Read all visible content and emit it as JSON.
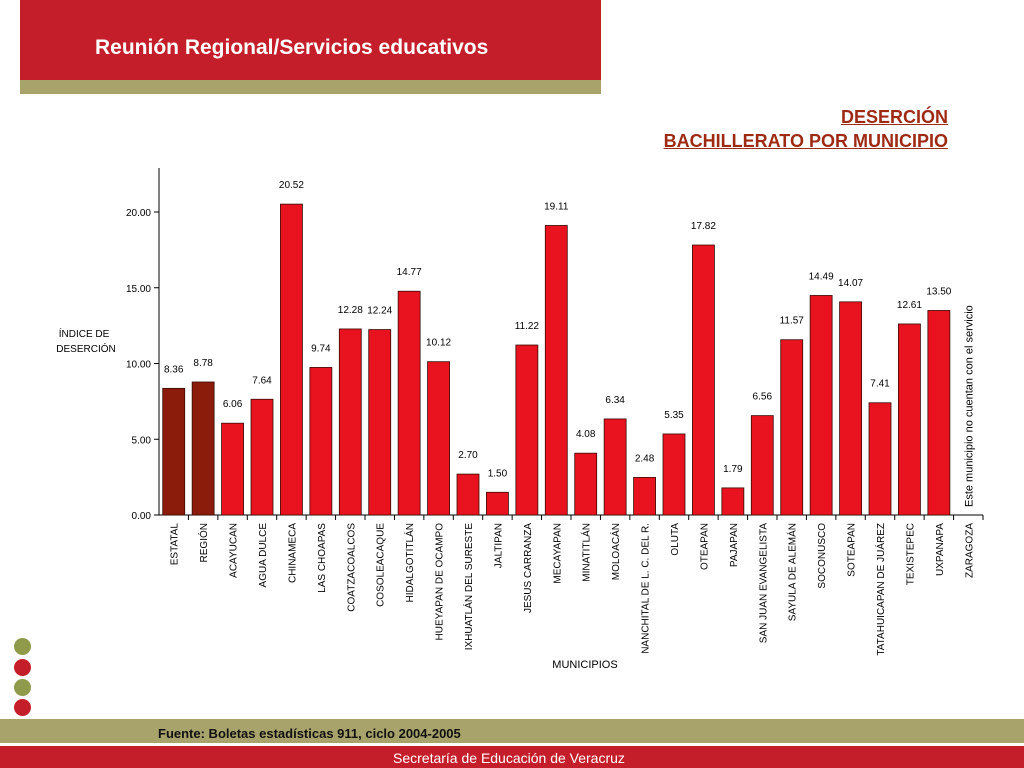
{
  "header": {
    "title": "Reunión Regional/Servicios educativos"
  },
  "chart_heading": {
    "line1": "DESERCIÓN",
    "line2": "BACHILLERATO POR MUNICIPIO"
  },
  "footer": {
    "source": "Fuente: Boletas estadísticas 911, ciclo 2004-2005",
    "secretaria": "Secretaría de Educación de Veracruz"
  },
  "colors": {
    "header_red": "#c41e2a",
    "olive": "#a8a36a",
    "bar_red": "#e8131f",
    "bar_dark": "#8b1c0c",
    "heading_text": "#9e2a14"
  },
  "decor": {
    "dots": [
      "#8f9a4a",
      "#c41e2a",
      "#8f9a4a",
      "#c41e2a"
    ]
  },
  "chart_data": {
    "type": "bar",
    "title": "DESERCIÓN BACHILLERATO POR MUNICIPIO",
    "ylabel": "ÍNDICE DE DESERCIÓN",
    "xlabel": "MUNICIPIOS",
    "ylim": [
      0,
      23
    ],
    "yticks": [
      "0.00",
      "5.00",
      "10.00",
      "15.00",
      "20.00"
    ],
    "grid": false,
    "categories": [
      "ESTATAL",
      "REGIÓN",
      "ACAYUCAN",
      "AGUA DULCE",
      "CHINAMECA",
      "LAS CHOAPAS",
      "COATZACOALCOS",
      "COSOLEACAQUE",
      "HIDALGOTITLÁN",
      "HUEYAPAN DE OCAMPO",
      "IXHUATLÁN DEL SURESTE",
      "JALTIPAN",
      "JESUS CARRANZA",
      "MECAYAPAN",
      "MINATITLÁN",
      "MOLOACÁN",
      "NANCHITAL DE L. C. DEL R.",
      "OLUTA",
      "OTEAPAN",
      "PAJAPAN",
      "SAN JUAN EVANGELISTA",
      "SAYULA DE ALEMÁN",
      "SOCONUSCO",
      "SOTEAPAN",
      "TATAHUICAPAN DE JUÁREZ",
      "TEXISTEPEC",
      "UXPANAPA",
      "ZARAGOZA"
    ],
    "values": [
      8.36,
      8.78,
      6.06,
      7.64,
      20.52,
      9.74,
      12.28,
      12.24,
      14.77,
      10.12,
      2.7,
      1.5,
      11.22,
      19.11,
      4.08,
      6.34,
      2.48,
      5.35,
      17.82,
      1.79,
      6.56,
      11.57,
      14.49,
      14.07,
      7.41,
      12.61,
      13.5,
      null
    ],
    "value_labels": [
      "8.36",
      "8.78",
      "6.06",
      "7.64",
      "20.52",
      "9.74",
      "12.28",
      "12.24",
      "14.77",
      "10.12",
      "2.70",
      "1.50",
      "11.22",
      "19.11",
      "4.08",
      "6.34",
      "2.48",
      "5.35",
      "17.82",
      "1.79",
      "6.56",
      "11.57",
      "14.49",
      "14.07",
      "7.41",
      "12.61",
      "13.50",
      ""
    ],
    "highlighted": [
      "ESTATAL",
      "REGIÓN"
    ],
    "annotation": "Este municipio no cuentan con el servicio"
  }
}
